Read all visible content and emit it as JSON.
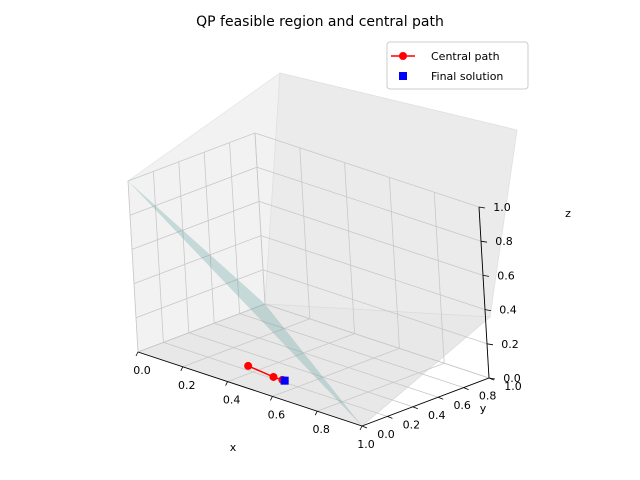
{
  "chart_data": {
    "type": "3d-surface-line-scatter",
    "title": "QP feasible region and central path",
    "xlabel": "x",
    "ylabel": "y",
    "zlabel": "z",
    "xlim": [
      0,
      1
    ],
    "ylim": [
      0,
      1
    ],
    "zlim": [
      0,
      1
    ],
    "xticks": [
      "0.0",
      "0.2",
      "0.4",
      "0.6",
      "0.8",
      "1.0"
    ],
    "yticks": [
      "0.0",
      "0.2",
      "0.4",
      "0.6",
      "0.8",
      "1.0"
    ],
    "zticks": [
      "0.0",
      "0.2",
      "0.4",
      "0.6",
      "0.8",
      "1.0"
    ],
    "grid": true,
    "legend_position": "top-right",
    "feasible_plane": {
      "equation": "x + y + z = 1",
      "corners": [
        [
          1,
          0,
          0
        ],
        [
          0,
          1,
          0
        ],
        [
          0,
          0,
          1
        ]
      ],
      "color": "#5f9ea0"
    },
    "series": [
      {
        "name": "Central path",
        "kind": "line-marker",
        "color": "#ff0000",
        "points": [
          {
            "x": 0.35,
            "y": 0.25,
            "z": 0.0
          },
          {
            "x": 0.48,
            "y": 0.22,
            "z": 0.0
          },
          {
            "x": 0.52,
            "y": 0.22,
            "z": 0.0
          },
          {
            "x": 0.53,
            "y": 0.22,
            "z": 0.0
          }
        ]
      },
      {
        "name": "Final solution",
        "kind": "marker-square",
        "color": "#0000ff",
        "points": [
          {
            "x": 0.53,
            "y": 0.22,
            "z": 0.0
          }
        ]
      }
    ]
  }
}
